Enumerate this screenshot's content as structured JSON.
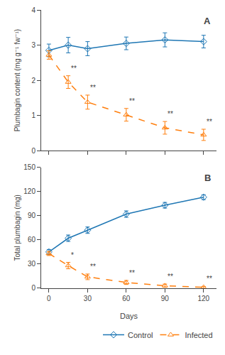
{
  "chart_data": [
    {
      "type": "line",
      "title": "A",
      "x": [
        0,
        15,
        30,
        60,
        90,
        120
      ],
      "xlim": [
        -6,
        130
      ],
      "xticks": [
        0,
        30,
        60,
        90,
        120
      ],
      "ylabel": "Plumbagin content (mg g⁻¹ fw⁻¹)",
      "ylim": [
        0,
        4
      ],
      "yticks": [
        0,
        1,
        2,
        3,
        4
      ],
      "grid": false,
      "tick_labels": "y",
      "series": [
        {
          "name": "Control",
          "values": [
            2.85,
            3.0,
            2.9,
            3.05,
            3.15,
            3.1
          ],
          "errors": [
            0.18,
            0.22,
            0.2,
            0.18,
            0.2,
            0.18
          ],
          "line_style": "solid",
          "marker": "diamond-open"
        },
        {
          "name": "Infected",
          "values": [
            2.72,
            1.95,
            1.38,
            1.02,
            0.65,
            0.45
          ],
          "errors": [
            0.12,
            0.18,
            0.2,
            0.18,
            0.18,
            0.16
          ],
          "line_style": "dash",
          "marker": "triangle-up-open"
        }
      ],
      "annotations": [
        {
          "x": 15,
          "text": "**",
          "series": "Infected"
        },
        {
          "x": 30,
          "text": "**",
          "series": "Infected"
        },
        {
          "x": 60,
          "text": "**",
          "series": "Infected"
        },
        {
          "x": 90,
          "text": "**",
          "series": "Infected"
        },
        {
          "x": 120,
          "text": "**",
          "series": "Infected"
        }
      ]
    },
    {
      "type": "line",
      "title": "B",
      "x": [
        0,
        15,
        30,
        60,
        90,
        120
      ],
      "xlim": [
        -6,
        130
      ],
      "xticks": [
        0,
        30,
        60,
        90,
        120
      ],
      "xlabel": "Days",
      "ylabel": "Total plumbagin (mg)",
      "ylim": [
        0,
        150
      ],
      "yticks": [
        0,
        30,
        60,
        90,
        120,
        150
      ],
      "grid": false,
      "legend": "lower right",
      "series": [
        {
          "name": "Control",
          "values": [
            45,
            62,
            72,
            92,
            103,
            113
          ],
          "errors": [
            3.0,
            4.0,
            4.0,
            4.0,
            3.5,
            3.0
          ],
          "line_style": "solid",
          "marker": "diamond-open"
        },
        {
          "name": "Infected",
          "values": [
            43,
            28,
            14,
            7,
            3,
            1
          ],
          "errors": [
            2.5,
            4.0,
            3.5,
            2.5,
            2.0,
            1.0
          ],
          "line_style": "dash",
          "marker": "triangle-up-open"
        }
      ],
      "annotations": [
        {
          "x": 15,
          "text": "*",
          "series": "Infected"
        },
        {
          "x": 30,
          "text": "**",
          "series": "Infected"
        },
        {
          "x": 60,
          "text": "**",
          "series": "Infected"
        },
        {
          "x": 90,
          "text": "**",
          "series": "Infected"
        },
        {
          "x": 120,
          "text": "**",
          "series": "Infected"
        }
      ]
    }
  ]
}
